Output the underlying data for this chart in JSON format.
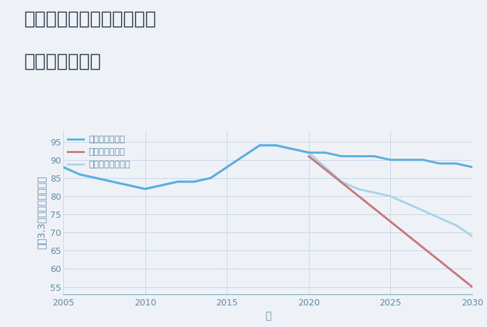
{
  "title_line1": "兵庫県西宮市今津真砂町の",
  "title_line2": "土地の価格推移",
  "xlabel": "年",
  "ylabel": "坪（3.3㎡）単価（万円）",
  "background_color": "#eef2f7",
  "plot_background": "#eef2f7",
  "good_scenario": {
    "x": [
      2005,
      2006,
      2007,
      2008,
      2009,
      2010,
      2011,
      2012,
      2013,
      2014,
      2015,
      2016,
      2017,
      2018,
      2019,
      2020,
      2021,
      2022,
      2023,
      2024,
      2025,
      2026,
      2027,
      2028,
      2029,
      2030
    ],
    "y": [
      88,
      86,
      85,
      84,
      83,
      82,
      83,
      84,
      84,
      85,
      88,
      91,
      94,
      94,
      93,
      92,
      92,
      91,
      91,
      91,
      90,
      90,
      90,
      89,
      89,
      88
    ],
    "color": "#5aafe0",
    "label": "グッドシナリオ",
    "linewidth": 2.2
  },
  "bad_scenario": {
    "x": [
      2020,
      2025,
      2030
    ],
    "y": [
      91,
      73,
      55
    ],
    "color": "#c97880",
    "label": "バッドシナリオ",
    "linewidth": 2.2
  },
  "normal_scenario": {
    "x": [
      2005,
      2006,
      2007,
      2008,
      2009,
      2010,
      2011,
      2012,
      2013,
      2014,
      2015,
      2016,
      2017,
      2018,
      2019,
      2020,
      2021,
      2022,
      2023,
      2024,
      2025,
      2026,
      2027,
      2028,
      2029,
      2030
    ],
    "y": [
      88,
      86,
      85,
      84,
      83,
      82,
      83,
      84,
      84,
      85,
      88,
      91,
      94,
      94,
      93,
      92,
      88,
      84,
      82,
      81,
      80,
      78,
      76,
      74,
      72,
      69
    ],
    "color": "#a8d4e8",
    "label": "ノーマルシナリオ",
    "linewidth": 2.2
  },
  "ylim": [
    53,
    98
  ],
  "xlim": [
    2005,
    2030
  ],
  "yticks": [
    55,
    60,
    65,
    70,
    75,
    80,
    85,
    90,
    95
  ],
  "xticks": [
    2005,
    2010,
    2015,
    2020,
    2025,
    2030
  ],
  "title_fontsize": 19,
  "label_fontsize": 10,
  "tick_fontsize": 9,
  "legend_fontsize": 9,
  "grid_color": "#c5d8ea",
  "axis_color": "#7aaabf",
  "tick_color": "#5a8aaa"
}
